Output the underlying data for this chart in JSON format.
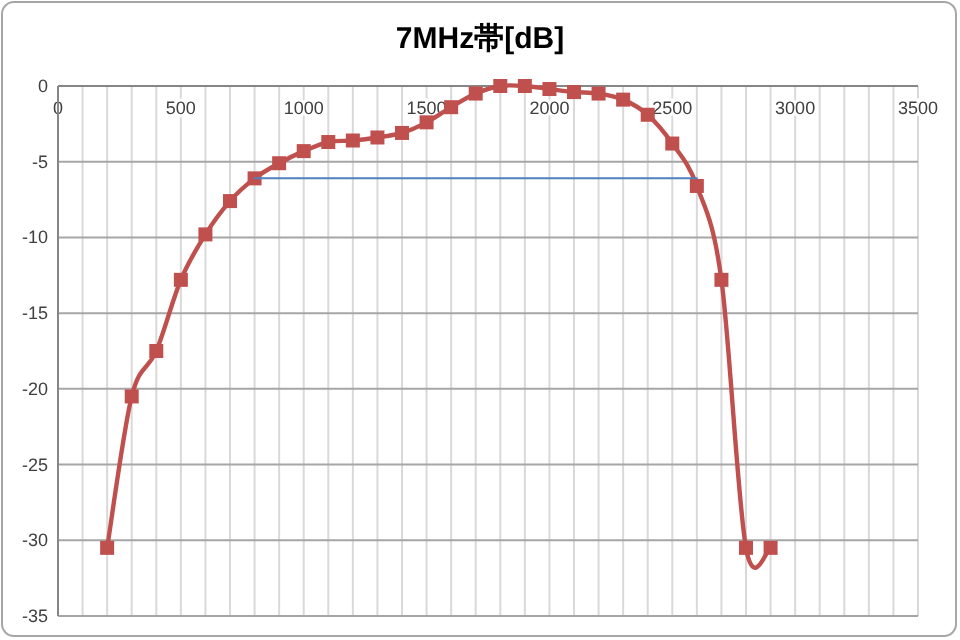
{
  "chart_data": {
    "type": "line",
    "title": "7MHz帯[dB]",
    "xlim": [
      0,
      3500
    ],
    "xticks": [
      0,
      {
        "value": 100,
        "label": null
      },
      {
        "value": 200,
        "label": null
      },
      {
        "value": 300,
        "label": null
      },
      {
        "value": 400,
        "label": null
      },
      500,
      {
        "value": 600,
        "label": null
      },
      {
        "value": 700,
        "label": null
      },
      {
        "value": 800,
        "label": null
      },
      {
        "value": 900,
        "label": null
      },
      1000,
      {
        "value": 1100,
        "label": null
      },
      {
        "value": 1200,
        "label": null
      },
      {
        "value": 1300,
        "label": null
      },
      {
        "value": 1400,
        "label": null
      },
      1500,
      {
        "value": 1600,
        "label": null
      },
      {
        "value": 1700,
        "label": null
      },
      {
        "value": 1800,
        "label": null
      },
      {
        "value": 1900,
        "label": null
      },
      2000,
      {
        "value": 2100,
        "label": null
      },
      {
        "value": 2200,
        "label": null
      },
      {
        "value": 2300,
        "label": null
      },
      {
        "value": 2400,
        "label": null
      },
      2500,
      {
        "value": 2600,
        "label": null
      },
      {
        "value": 2700,
        "label": null
      },
      {
        "value": 2800,
        "label": null
      },
      {
        "value": 2900,
        "label": null
      },
      3000,
      {
        "value": 3100,
        "label": null
      },
      {
        "value": 3200,
        "label": null
      },
      {
        "value": 3300,
        "label": null
      },
      {
        "value": 3400,
        "label": null
      },
      3500
    ],
    "ylim": [
      -35,
      0
    ],
    "yticks": [
      -35,
      -30,
      -25,
      -20,
      -15,
      -10,
      -5,
      0
    ],
    "grid": true,
    "series": [
      {
        "color": "#c0504d",
        "marker": "square",
        "x": [
          200,
          300,
          400,
          500,
          600,
          700,
          800,
          900,
          1000,
          1100,
          1200,
          1300,
          1400,
          1500,
          1600,
          1700,
          1800,
          1900,
          2000,
          2100,
          2200,
          2300,
          2400,
          2500,
          2600,
          2700,
          2800,
          2900
        ],
        "values": [
          -30.5,
          -20.5,
          -17.5,
          -12.8,
          -9.8,
          -7.6,
          -6.1,
          -5.1,
          -4.3,
          -3.7,
          -3.6,
          -3.4,
          -3.1,
          -2.4,
          -1.4,
          -0.5,
          0,
          0,
          -0.2,
          -0.4,
          -0.5,
          -0.9,
          -1.9,
          -3.8,
          -6.6,
          -12.8,
          -30.5,
          -30.5
        ]
      },
      {
        "color": "#4f81bd",
        "marker": "none",
        "x": [
          800,
          2600
        ],
        "values": [
          -6.1,
          -6.1
        ]
      }
    ]
  }
}
